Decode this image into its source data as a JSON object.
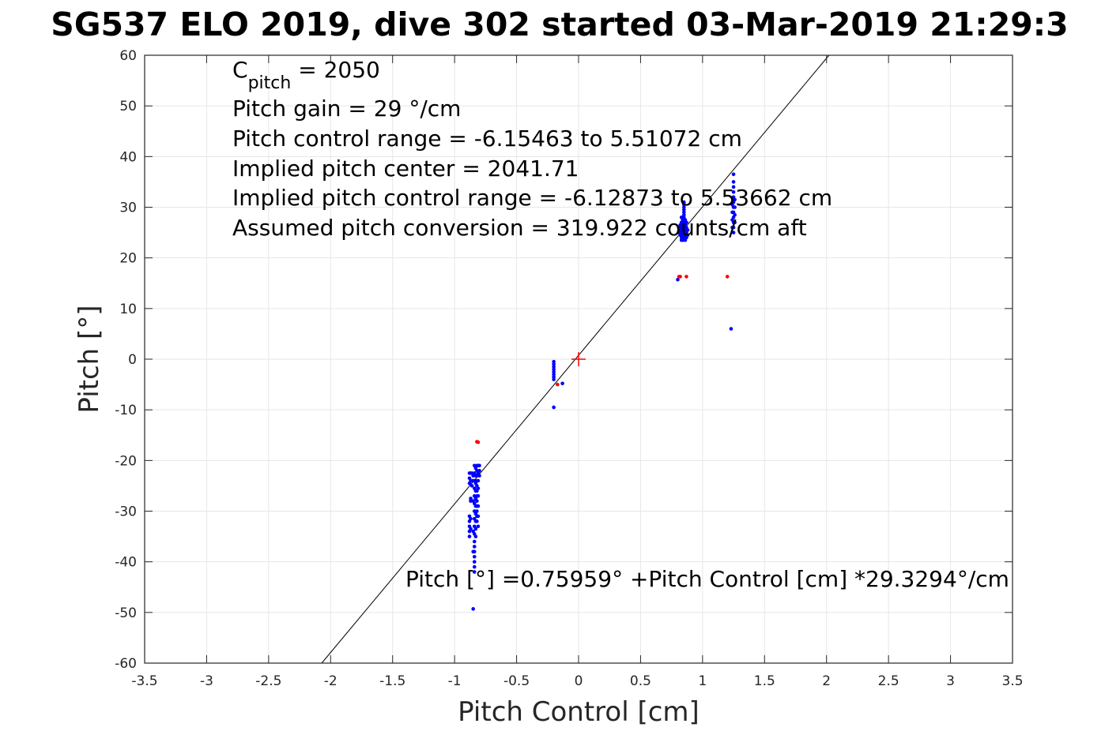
{
  "chart_data": {
    "type": "scatter",
    "title": "SG537 ELO 2019, dive 302 started 03-Mar-2019 21:29:3",
    "xlabel": "Pitch Control [cm]",
    "ylabel": "Pitch [°]",
    "xlim": [
      -3.5,
      3.5
    ],
    "ylim": [
      -60,
      60
    ],
    "grid": true,
    "x_ticks": [
      -3.5,
      -3,
      -2.5,
      -2,
      -1.5,
      -1,
      -0.5,
      0,
      0.5,
      1,
      1.5,
      2,
      2.5,
      3,
      3.5
    ],
    "x_tick_labels": [
      "-3.5",
      "-3",
      "-2.5",
      "-2",
      "-1.5",
      "-1",
      "-0.5",
      "0",
      "0.5",
      "1",
      "1.5",
      "2",
      "2.5",
      "3",
      "3.5"
    ],
    "y_ticks": [
      60,
      50,
      40,
      30,
      20,
      10,
      0,
      -10,
      -20,
      -30,
      -40,
      -50,
      -60
    ],
    "y_tick_labels": [
      "60",
      "50",
      "40",
      "30",
      "20",
      "10",
      "0",
      "-10",
      "-20",
      "-30",
      "-40",
      "-50",
      "-60"
    ],
    "colors": {
      "blue": "#0000ff",
      "red": "#ff0000",
      "line": "#000000",
      "grid": "#e6e6e6",
      "axes": "#262626"
    },
    "fit_line": {
      "intercept": 0.75959,
      "slope": 29.3294
    },
    "center_marker": {
      "x": 0,
      "y": 0,
      "color": "#ff0000"
    },
    "annotation_lines": [
      {
        "main": "C",
        "sub": "pitch",
        "rest": " = 2050"
      },
      {
        "main": "Pitch gain = 29 °/cm"
      },
      {
        "main": "Pitch control range = -6.15463 to 5.51072 cm"
      },
      {
        "main": "Implied pitch center = 2041.71"
      },
      {
        "main": "Implied pitch control range = -6.12873 to 5.53662 cm"
      },
      {
        "main": "Assumed pitch conversion = 319.922 counts/cm aft"
      }
    ],
    "fit_label": "Pitch [°] =0.75959° +Pitch Control [cm] *29.3294°/cm",
    "series": [
      {
        "color": "#0000ff",
        "points": [
          [
            0.85,
            24
          ],
          [
            0.85,
            24.5
          ],
          [
            0.85,
            25
          ],
          [
            0.85,
            25.5
          ],
          [
            0.85,
            26
          ],
          [
            0.85,
            26.5
          ],
          [
            0.85,
            27
          ],
          [
            0.85,
            27.5
          ],
          [
            0.85,
            28
          ],
          [
            0.85,
            28.5
          ],
          [
            0.85,
            29
          ],
          [
            0.85,
            29.5
          ],
          [
            0.85,
            30
          ],
          [
            0.85,
            30.5
          ],
          [
            0.85,
            31
          ],
          [
            0.83,
            23.5
          ],
          [
            0.83,
            24
          ],
          [
            0.83,
            25
          ],
          [
            0.83,
            26
          ],
          [
            0.83,
            27
          ],
          [
            0.83,
            28
          ],
          [
            0.84,
            23.5
          ],
          [
            0.84,
            24.5
          ],
          [
            0.84,
            25.5
          ],
          [
            0.84,
            26.5
          ],
          [
            0.84,
            27.5
          ],
          [
            0.86,
            23.5
          ],
          [
            0.86,
            24.5
          ],
          [
            0.86,
            25.5
          ],
          [
            0.86,
            26.5
          ],
          [
            0.86,
            27.5
          ],
          [
            0.87,
            24
          ],
          [
            0.87,
            25
          ],
          [
            0.87,
            26
          ],
          [
            0.87,
            27
          ],
          [
            0.82,
            24.5
          ],
          [
            0.82,
            25.5
          ],
          [
            0.82,
            26.5
          ],
          [
            0.81,
            25
          ],
          [
            0.81,
            26
          ],
          [
            0.88,
            24.5
          ],
          [
            0.88,
            25.5
          ],
          [
            0.8,
            15.7
          ],
          [
            1.25,
            25
          ],
          [
            1.25,
            26
          ],
          [
            1.25,
            27
          ],
          [
            1.25,
            28
          ],
          [
            1.25,
            29
          ],
          [
            1.25,
            30
          ],
          [
            1.25,
            31
          ],
          [
            1.25,
            32
          ],
          [
            1.25,
            33
          ],
          [
            1.25,
            34
          ],
          [
            1.25,
            35
          ],
          [
            1.25,
            36.5
          ],
          [
            1.24,
            26
          ],
          [
            1.24,
            27.5
          ],
          [
            1.24,
            29
          ],
          [
            1.24,
            30.5
          ],
          [
            1.26,
            27
          ],
          [
            1.26,
            28.5
          ],
          [
            1.26,
            30
          ],
          [
            1.26,
            31.5
          ],
          [
            1.23,
            6
          ],
          [
            -0.2,
            -0.5
          ],
          [
            -0.2,
            -1
          ],
          [
            -0.2,
            -1.5
          ],
          [
            -0.2,
            -2
          ],
          [
            -0.2,
            -2.5
          ],
          [
            -0.2,
            -3
          ],
          [
            -0.2,
            -3.5
          ],
          [
            -0.2,
            -4
          ],
          [
            -0.13,
            -4.8
          ],
          [
            -0.2,
            -9.5
          ],
          [
            -0.82,
            -21
          ],
          [
            -0.82,
            -22
          ],
          [
            -0.82,
            -23
          ],
          [
            -0.82,
            -24
          ],
          [
            -0.82,
            -25
          ],
          [
            -0.82,
            -26
          ],
          [
            -0.82,
            -27
          ],
          [
            -0.82,
            -28
          ],
          [
            -0.82,
            -29
          ],
          [
            -0.82,
            -30
          ],
          [
            -0.82,
            -31
          ],
          [
            -0.82,
            -32
          ],
          [
            -0.83,
            -21.5
          ],
          [
            -0.83,
            -23
          ],
          [
            -0.83,
            -24.5
          ],
          [
            -0.83,
            -26
          ],
          [
            -0.83,
            -27.5
          ],
          [
            -0.83,
            -29
          ],
          [
            -0.83,
            -30.5
          ],
          [
            -0.83,
            -32
          ],
          [
            -0.83,
            -33.5
          ],
          [
            -0.83,
            -35
          ],
          [
            -0.84,
            -21
          ],
          [
            -0.84,
            -22.5
          ],
          [
            -0.84,
            -24
          ],
          [
            -0.84,
            -25.5
          ],
          [
            -0.84,
            -27
          ],
          [
            -0.84,
            -28.5
          ],
          [
            -0.84,
            -30
          ],
          [
            -0.84,
            -31.5
          ],
          [
            -0.84,
            -33
          ],
          [
            -0.84,
            -34.5
          ],
          [
            -0.84,
            -36
          ],
          [
            -0.84,
            -37
          ],
          [
            -0.84,
            -38
          ],
          [
            -0.84,
            -39
          ],
          [
            -0.84,
            -40
          ],
          [
            -0.84,
            -41
          ],
          [
            -0.84,
            -42
          ],
          [
            -0.81,
            -21
          ],
          [
            -0.81,
            -22.5
          ],
          [
            -0.81,
            -24
          ],
          [
            -0.81,
            -25.5
          ],
          [
            -0.81,
            -27
          ],
          [
            -0.81,
            -29
          ],
          [
            -0.81,
            -31
          ],
          [
            -0.81,
            -33
          ],
          [
            -0.8,
            -21
          ],
          [
            -0.8,
            -22
          ],
          [
            -0.8,
            -23
          ],
          [
            -0.85,
            -23
          ],
          [
            -0.85,
            -24
          ],
          [
            -0.85,
            -28
          ],
          [
            -0.85,
            -34
          ],
          [
            -0.85,
            -38
          ],
          [
            -0.86,
            -22.5
          ],
          [
            -0.86,
            -24
          ],
          [
            -0.86,
            -25
          ],
          [
            -0.88,
            -22.5
          ],
          [
            -0.88,
            -23.5
          ],
          [
            -0.88,
            -24.5
          ],
          [
            -0.88,
            -31
          ],
          [
            -0.88,
            -32
          ],
          [
            -0.88,
            -33
          ],
          [
            -0.88,
            -34
          ],
          [
            -0.88,
            -35
          ],
          [
            -0.87,
            -22.5
          ],
          [
            -0.87,
            -24
          ],
          [
            -0.87,
            -27.5
          ],
          [
            -0.87,
            -28
          ],
          [
            -0.87,
            -31.5
          ],
          [
            -0.87,
            -33.5
          ],
          [
            -0.85,
            -49.3
          ]
        ]
      },
      {
        "color": "#ff0000",
        "points": [
          [
            0.81,
            16.3
          ],
          [
            0.82,
            16.3
          ],
          [
            0.87,
            16.3
          ],
          [
            1.2,
            16.3
          ],
          [
            -0.17,
            -5
          ],
          [
            -0.82,
            -16.3
          ],
          [
            -0.81,
            -16.4
          ]
        ]
      }
    ]
  }
}
